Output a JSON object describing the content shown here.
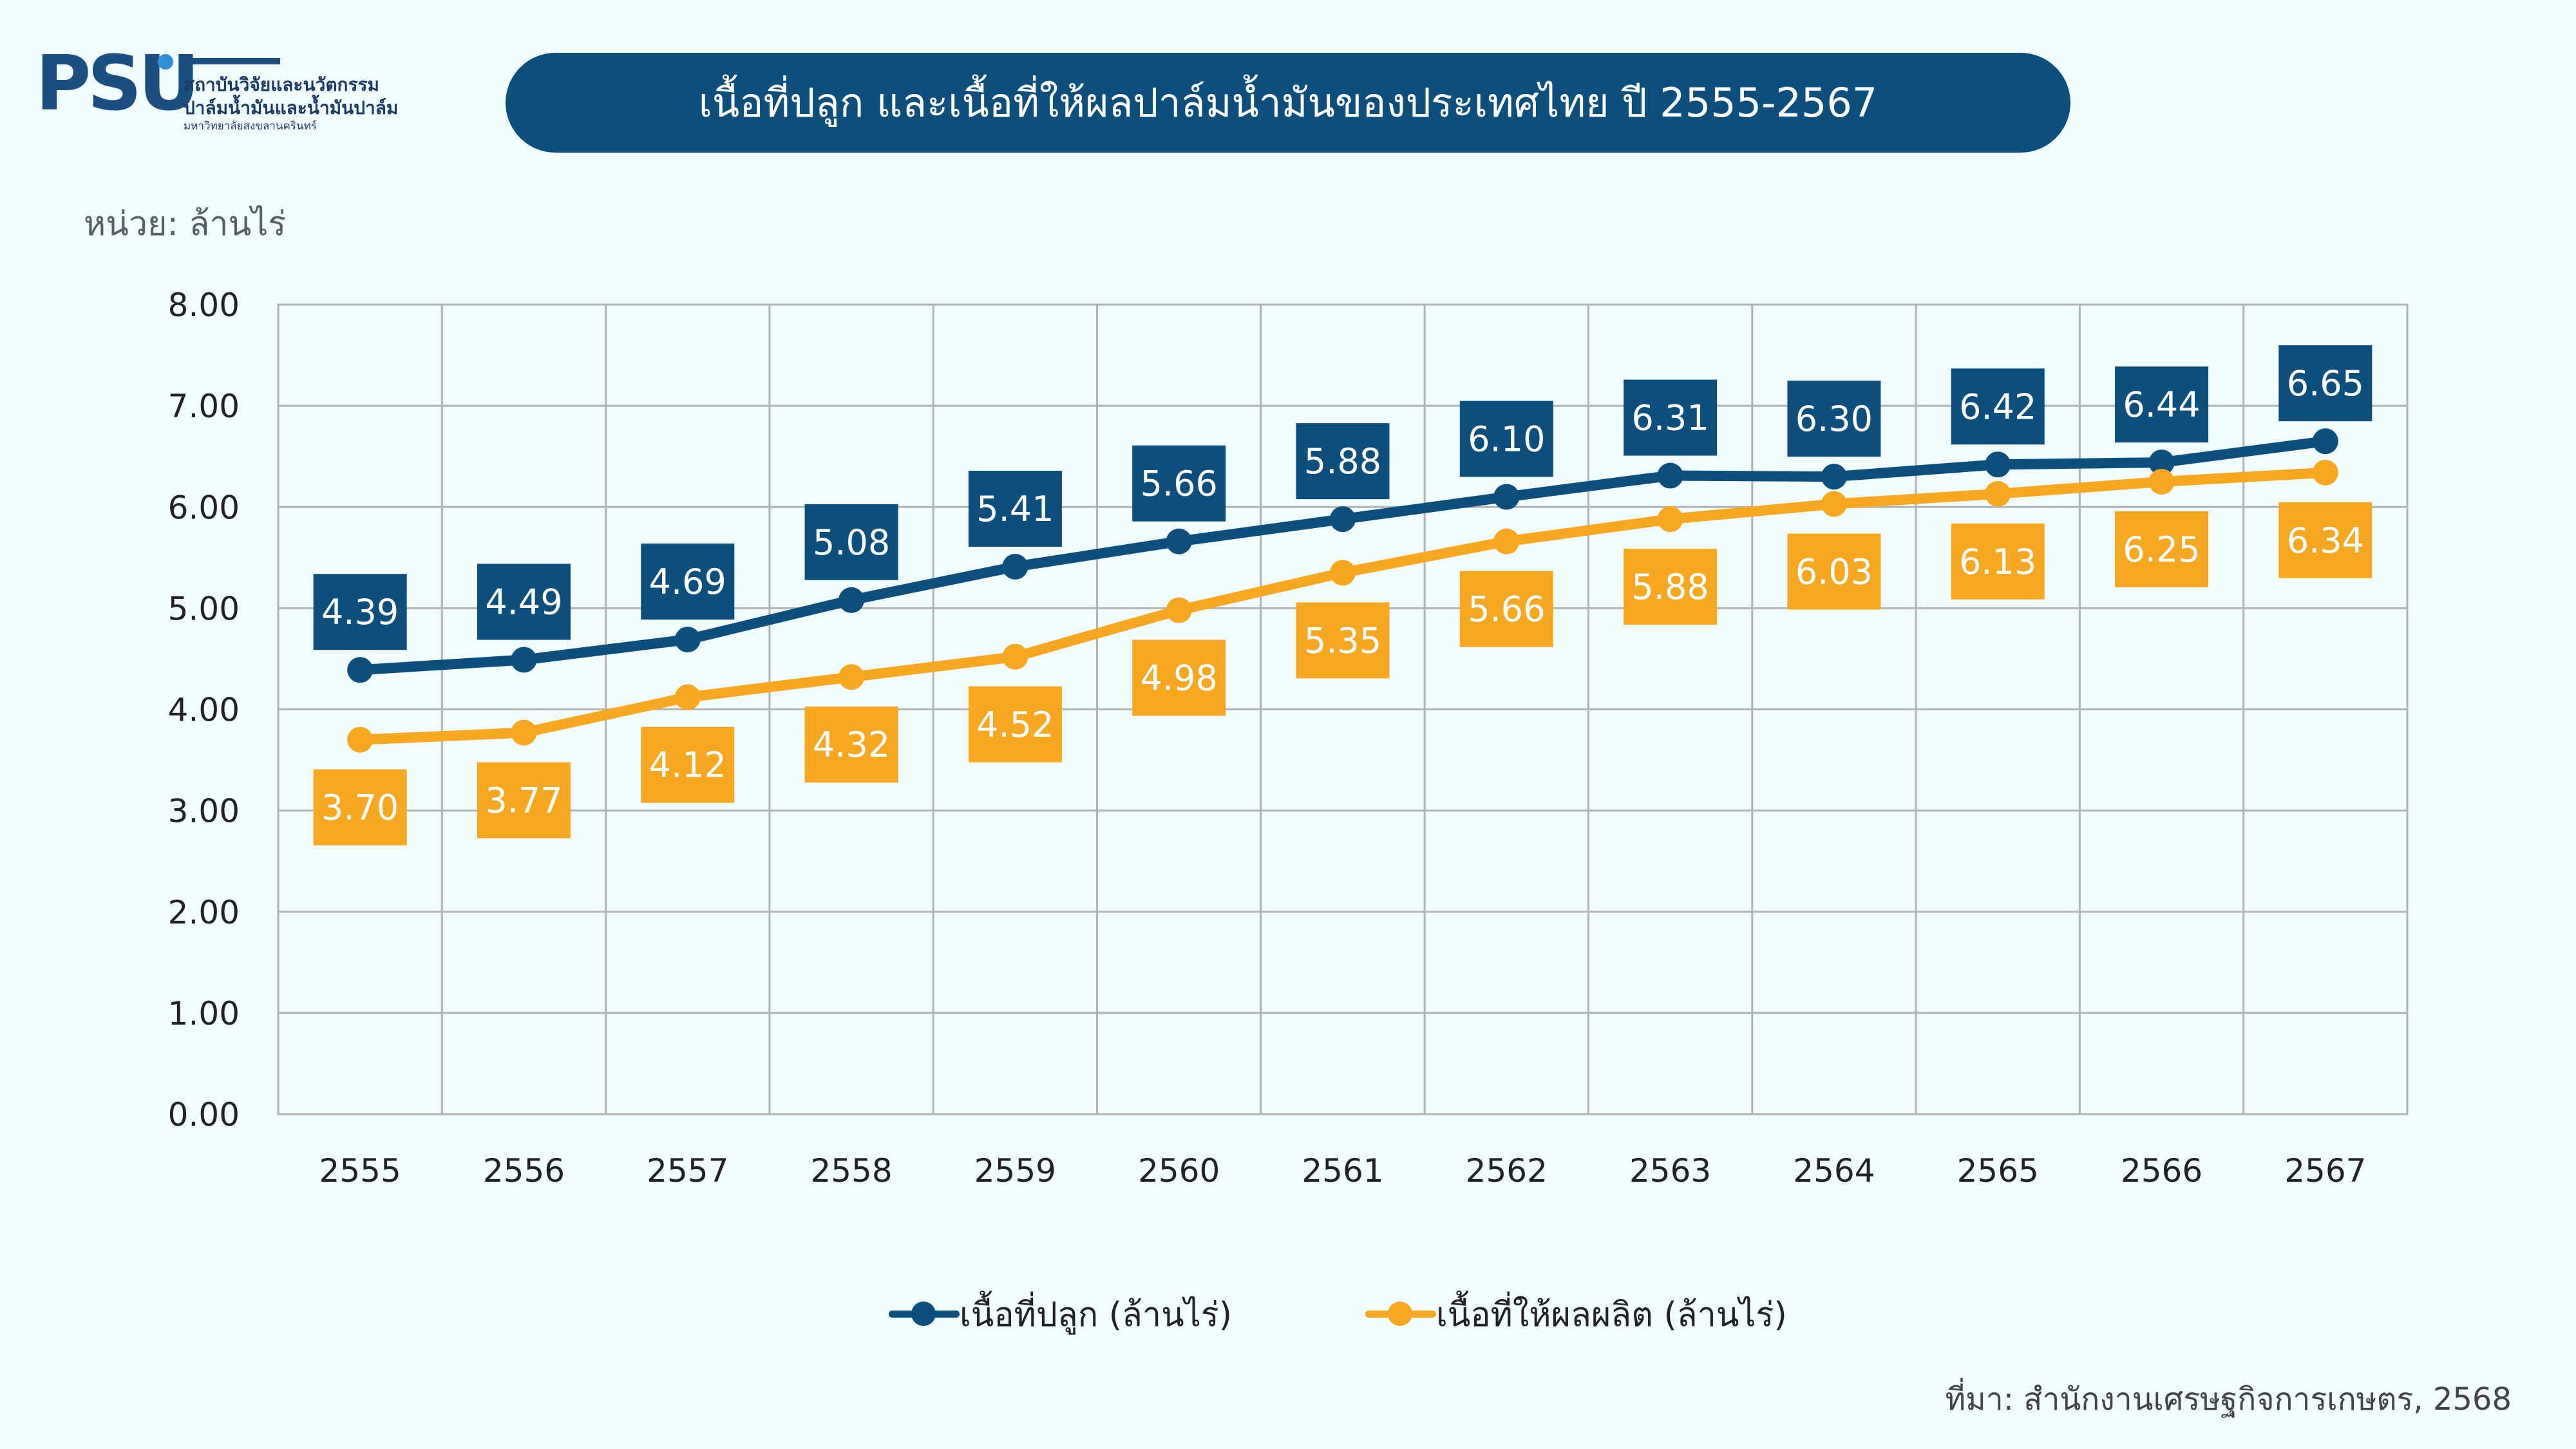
{
  "logo": {
    "mark": "PSU",
    "line1": "สถาบันวิจัยและนวัตกรรม",
    "line2": "ปาล์มน้ำมันและน้ำมันปาล์ม",
    "line3": "มหาวิทยาลัยสงขลานครินทร์"
  },
  "unit_label": "หน่วย: ล้านไร่",
  "source": "ที่มา: สำนักงานเศรษฐกิจการเกษตร, 2568",
  "colors": {
    "planted": "#0d4f7c",
    "harvested": "#f7a823",
    "grid": "#b3b3b3",
    "background": "#f0fcfd"
  },
  "chart_data": {
    "type": "line",
    "title": "เนื้อที่ปลูก และเนื้อที่ให้ผลปาล์มน้ำมันของประเทศไทย ปี 2555-2567",
    "xlabel": "",
    "ylabel": "หน่วย: ล้านไร่",
    "categories": [
      "2555",
      "2556",
      "2557",
      "2558",
      "2559",
      "2560",
      "2561",
      "2562",
      "2563",
      "2564",
      "2565",
      "2566",
      "2567"
    ],
    "ylim": [
      0,
      8
    ],
    "yticks": [
      "0.00",
      "1.00",
      "2.00",
      "3.00",
      "4.00",
      "5.00",
      "6.00",
      "7.00",
      "8.00"
    ],
    "grid": true,
    "legend_position": "bottom",
    "series": [
      {
        "name": "เนื้อที่ปลูก (ล้านไร่)",
        "color": "#0d4f7c",
        "values": [
          4.39,
          4.49,
          4.69,
          5.08,
          5.41,
          5.66,
          5.88,
          6.1,
          6.31,
          6.3,
          6.42,
          6.44,
          6.65
        ],
        "labels": [
          "4.39",
          "4.49",
          "4.69",
          "5.08",
          "5.41",
          "5.66",
          "5.88",
          "6.10",
          "6.31",
          "6.30",
          "6.42",
          "6.44",
          "6.65"
        ],
        "label_position": "above"
      },
      {
        "name": "เนื้อที่ให้ผลผลิต (ล้านไร่)",
        "color": "#f7a823",
        "values": [
          3.7,
          3.77,
          4.12,
          4.32,
          4.52,
          4.98,
          5.35,
          5.66,
          5.88,
          6.03,
          6.13,
          6.25,
          6.34
        ],
        "labels": [
          "3.70",
          "3.77",
          "4.12",
          "4.32",
          "4.52",
          "4.98",
          "5.35",
          "5.66",
          "5.88",
          "6.03",
          "6.13",
          "6.25",
          "6.34"
        ],
        "label_position": "below"
      }
    ]
  }
}
